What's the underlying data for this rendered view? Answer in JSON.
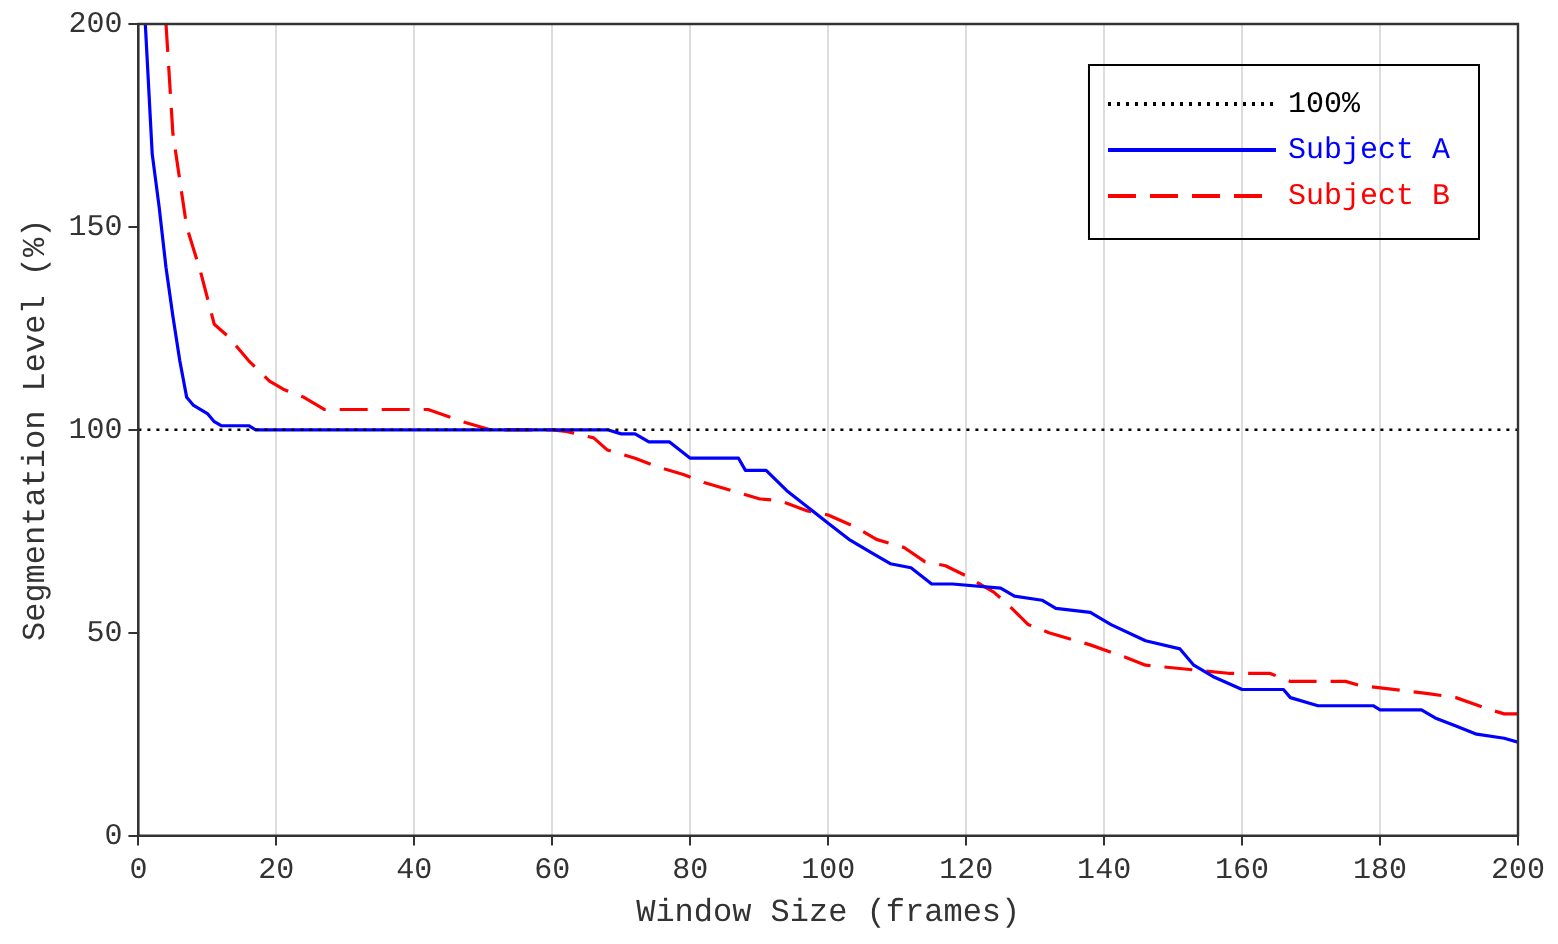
{
  "chart_data": {
    "type": "line",
    "xlabel": "Window Size (frames)",
    "ylabel": "Segmentation Level (%)",
    "xlim": [
      0,
      200
    ],
    "xticks": [
      0,
      20,
      40,
      60,
      80,
      100,
      120,
      140,
      160,
      180,
      200
    ],
    "ylim": [
      0,
      200
    ],
    "yticks": [
      0,
      50,
      100,
      150,
      200
    ],
    "grid": "x",
    "legend": "top right",
    "marker": "none",
    "series": [
      {
        "name": "100%",
        "color": "#000000",
        "line_style": "dotted",
        "x": [
          0,
          200
        ],
        "values": [
          100,
          100
        ]
      },
      {
        "name": "Subject A",
        "color": "#0000ff",
        "line_style": "solid",
        "x": [
          1,
          2,
          3,
          4,
          5,
          6,
          7,
          8,
          10,
          11,
          12,
          16,
          17,
          68,
          70,
          72,
          74,
          77,
          80,
          87,
          88,
          91,
          94,
          97,
          100,
          103,
          106,
          109,
          112,
          115,
          118,
          125,
          127,
          131,
          133,
          138,
          141,
          146,
          151,
          153,
          156,
          160,
          166,
          167,
          171,
          179,
          180,
          186,
          188,
          191,
          194,
          198,
          200
        ],
        "values": [
          200,
          168,
          155,
          140,
          128,
          117,
          108,
          106,
          104,
          102,
          101,
          101,
          100,
          100,
          99,
          99,
          97,
          97,
          93,
          93,
          90,
          90,
          85,
          81,
          77,
          73,
          70,
          67,
          66,
          62,
          62,
          61,
          59,
          58,
          56,
          55,
          52,
          48,
          46,
          42,
          39,
          36,
          36,
          34,
          32,
          32,
          31,
          31,
          29,
          27,
          25,
          24,
          23
        ]
      },
      {
        "name": "Subject B",
        "color": "#ff0000",
        "line_style": "dashed",
        "x": [
          4,
          5,
          7,
          9,
          11,
          13,
          16,
          19,
          21,
          24,
          27,
          42,
          47,
          51,
          60,
          62,
          66,
          68,
          72,
          75,
          79,
          82,
          86,
          90,
          93,
          97,
          100,
          104,
          107,
          111,
          114,
          117,
          120,
          124,
          126,
          129,
          132,
          138,
          143,
          146,
          158,
          164,
          167,
          175,
          177,
          187,
          191,
          196,
          198,
          200
        ],
        "values": [
          200,
          173,
          150,
          139,
          126,
          123,
          117,
          112,
          110,
          108,
          105,
          105,
          102,
          100,
          100,
          99.6,
          98,
          95,
          93,
          91,
          89,
          87,
          85,
          83,
          82.5,
          80,
          79,
          76,
          73,
          71,
          67.5,
          66.5,
          64,
          60,
          57,
          52,
          50,
          47,
          44,
          42,
          40,
          40,
          38,
          38,
          37,
          35,
          34,
          31,
          30,
          30
        ]
      }
    ]
  }
}
